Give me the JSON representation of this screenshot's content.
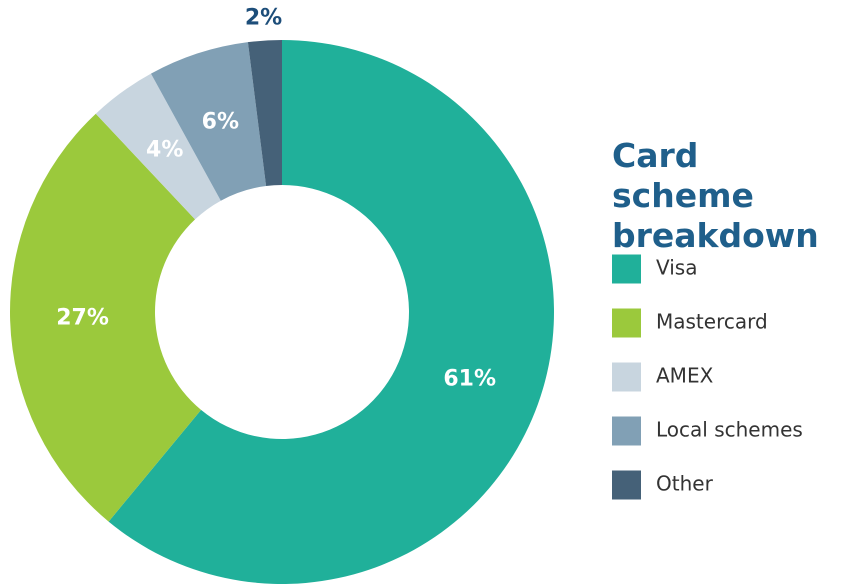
{
  "chart_data": {
    "type": "donut",
    "title": "Card scheme breakdown",
    "categories": [
      "Visa",
      "Mastercard",
      "AMEX",
      "Local schemes",
      "Other"
    ],
    "values": [
      61,
      27,
      4,
      6,
      2
    ],
    "value_labels": [
      "61%",
      "27%",
      "4%",
      "6%",
      "2%"
    ],
    "colors": [
      "#20b09a",
      "#9bc93c",
      "#c8d5df",
      "#81a0b5",
      "#456178"
    ],
    "legend": "right"
  }
}
